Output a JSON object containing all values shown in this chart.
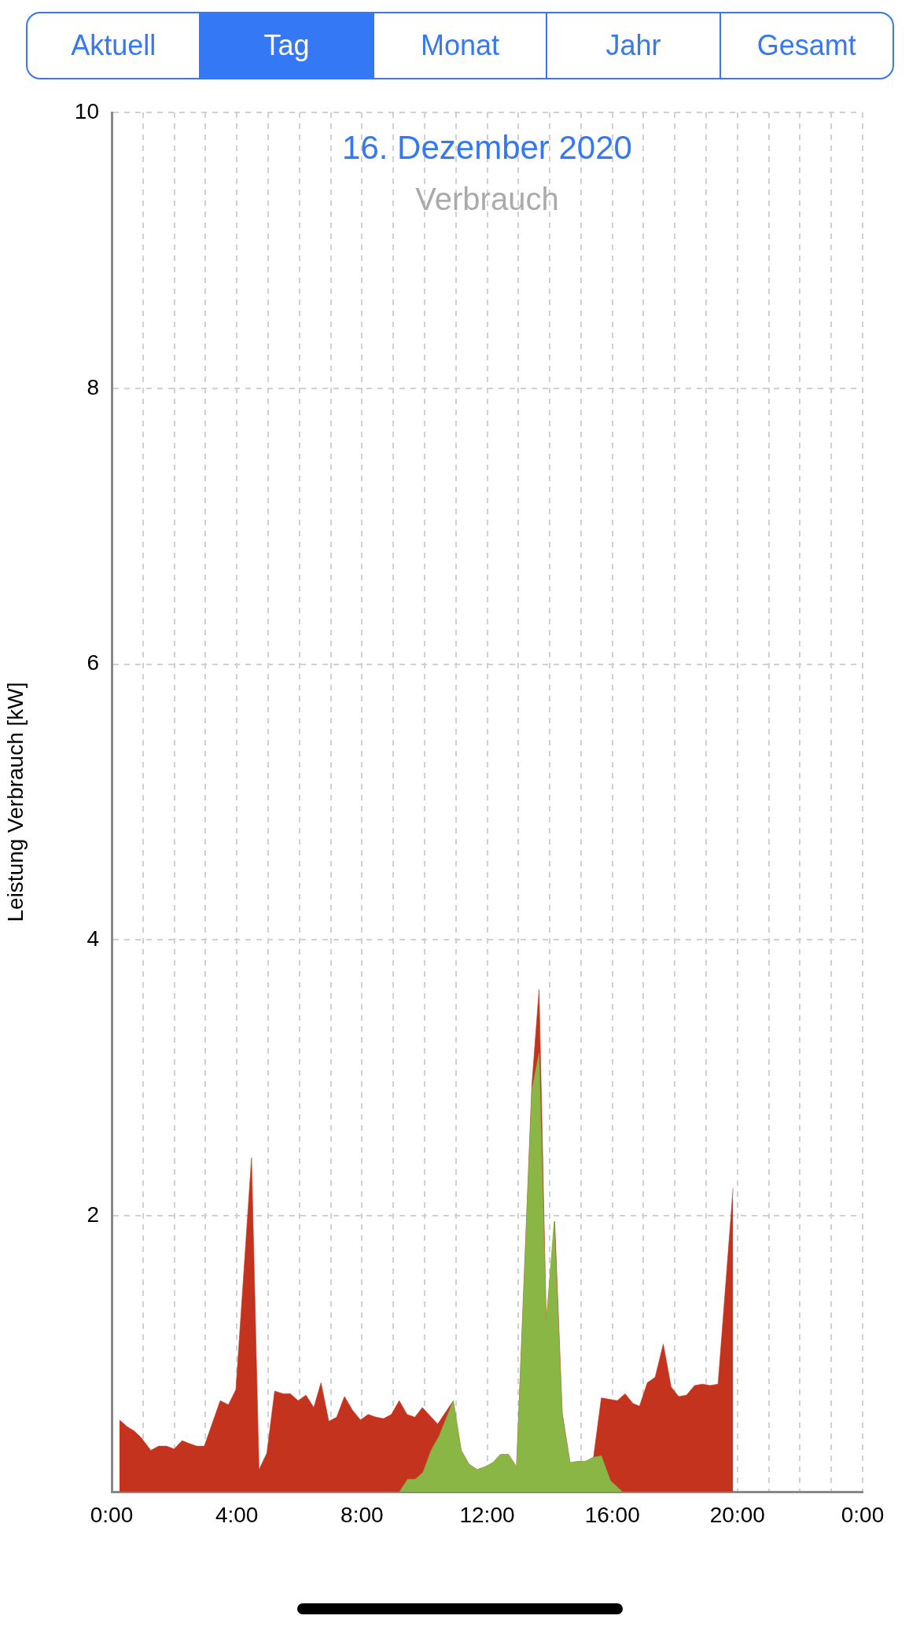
{
  "chart_data": {
    "type": "area",
    "title": "16. Dezember 2020",
    "subtitle": "Verbrauch",
    "ylabel": "Leistung Verbrauch [kW]",
    "annotations": [
      "Aktuell",
      "Tag",
      "Monat",
      "Jahr",
      "Gesamt"
    ],
    "xlim": [
      0,
      24
    ],
    "ylim": [
      0,
      10
    ],
    "xticks": [
      {
        "value": 0,
        "label": "0:00"
      },
      {
        "value": 1,
        "label": null
      },
      {
        "value": 2,
        "label": null
      },
      {
        "value": 3,
        "label": null
      },
      {
        "value": 4,
        "label": "4:00"
      },
      {
        "value": 5,
        "label": null
      },
      {
        "value": 6,
        "label": null
      },
      {
        "value": 7,
        "label": null
      },
      {
        "value": 8,
        "label": "8:00"
      },
      {
        "value": 9,
        "label": null
      },
      {
        "value": 10,
        "label": null
      },
      {
        "value": 11,
        "label": null
      },
      {
        "value": 12,
        "label": "12:00"
      },
      {
        "value": 13,
        "label": null
      },
      {
        "value": 14,
        "label": null
      },
      {
        "value": 15,
        "label": null
      },
      {
        "value": 16,
        "label": "16:00"
      },
      {
        "value": 17,
        "label": null
      },
      {
        "value": 18,
        "label": null
      },
      {
        "value": 19,
        "label": null
      },
      {
        "value": 20,
        "label": "20:00"
      },
      {
        "value": 21,
        "label": null
      },
      {
        "value": 22,
        "label": null
      },
      {
        "value": 23,
        "label": null
      },
      {
        "value": 24,
        "label": "0:00"
      }
    ],
    "yticks": [
      {
        "value": 0,
        "label": null
      },
      2,
      4,
      6,
      8,
      10
    ],
    "grid": true,
    "marker": "none",
    "series": [
      {
        "color": "#c3331e",
        "x": [
          0.25,
          0.5,
          0.72,
          0.95,
          1.25,
          1.5,
          1.75,
          2,
          2.25,
          2.47,
          2.72,
          2.96,
          3.47,
          3.73,
          3.97,
          4.47,
          4.71,
          4.96,
          5.21,
          5.48,
          5.71,
          5.96,
          6.21,
          6.46,
          6.69,
          6.94,
          7.19,
          7.44,
          7.7,
          7.95,
          8.2,
          8.45,
          8.69,
          8.94,
          9.19,
          9.44,
          9.69,
          9.93,
          10.42,
          10.92,
          11.17,
          11.42,
          11.68,
          11.93,
          12.18,
          12.43,
          12.68,
          12.94,
          13.43,
          13.66,
          13.89,
          14.16,
          14.4,
          14.65,
          14.9,
          15.15,
          15.4,
          15.65,
          16.16,
          16.41,
          16.66,
          16.87,
          17.12,
          17.37,
          17.63,
          17.88,
          18.12,
          18.37,
          18.63,
          18.88,
          19.13,
          19.38,
          19.86
        ],
        "values": [
          0.52,
          0.47,
          0.44,
          0.39,
          0.3,
          0.33,
          0.33,
          0.31,
          0.37,
          0.35,
          0.33,
          0.33,
          0.66,
          0.63,
          0.74,
          2.42,
          0.16,
          0.28,
          0.73,
          0.71,
          0.71,
          0.66,
          0.7,
          0.61,
          0.79,
          0.51,
          0.54,
          0.69,
          0.59,
          0.52,
          0.56,
          0.54,
          0.53,
          0.56,
          0.66,
          0.56,
          0.54,
          0.61,
          0.49,
          0.66,
          0.3,
          0.2,
          0.16,
          0.18,
          0.21,
          0.27,
          0.27,
          0.18,
          2.95,
          3.64,
          1.23,
          1.96,
          0.57,
          0.21,
          0.22,
          0.22,
          0.25,
          0.68,
          0.66,
          0.71,
          0.64,
          0.62,
          0.79,
          0.83,
          1.07,
          0.76,
          0.69,
          0.7,
          0.77,
          0.78,
          0.77,
          0.78,
          2.2
        ]
      },
      {
        "color": "#8ab646",
        "x": [
          9.2,
          9.46,
          9.7,
          9.95,
          10.21,
          10.46,
          10.92,
          11.17,
          11.42,
          11.68,
          11.93,
          12.18,
          12.43,
          12.68,
          12.94,
          13.43,
          13.66,
          13.89,
          14.14,
          14.4,
          14.65,
          14.9,
          15.15,
          15.4,
          15.65,
          15.94,
          16.32
        ],
        "values": [
          0,
          0.09,
          0.09,
          0.14,
          0.3,
          0.4,
          0.66,
          0.3,
          0.2,
          0.16,
          0.18,
          0.21,
          0.27,
          0.27,
          0.18,
          2.91,
          3.18,
          1.23,
          1.96,
          0.55,
          0.21,
          0.22,
          0.22,
          0.25,
          0.26,
          0.08,
          0
        ]
      }
    ]
  }
}
